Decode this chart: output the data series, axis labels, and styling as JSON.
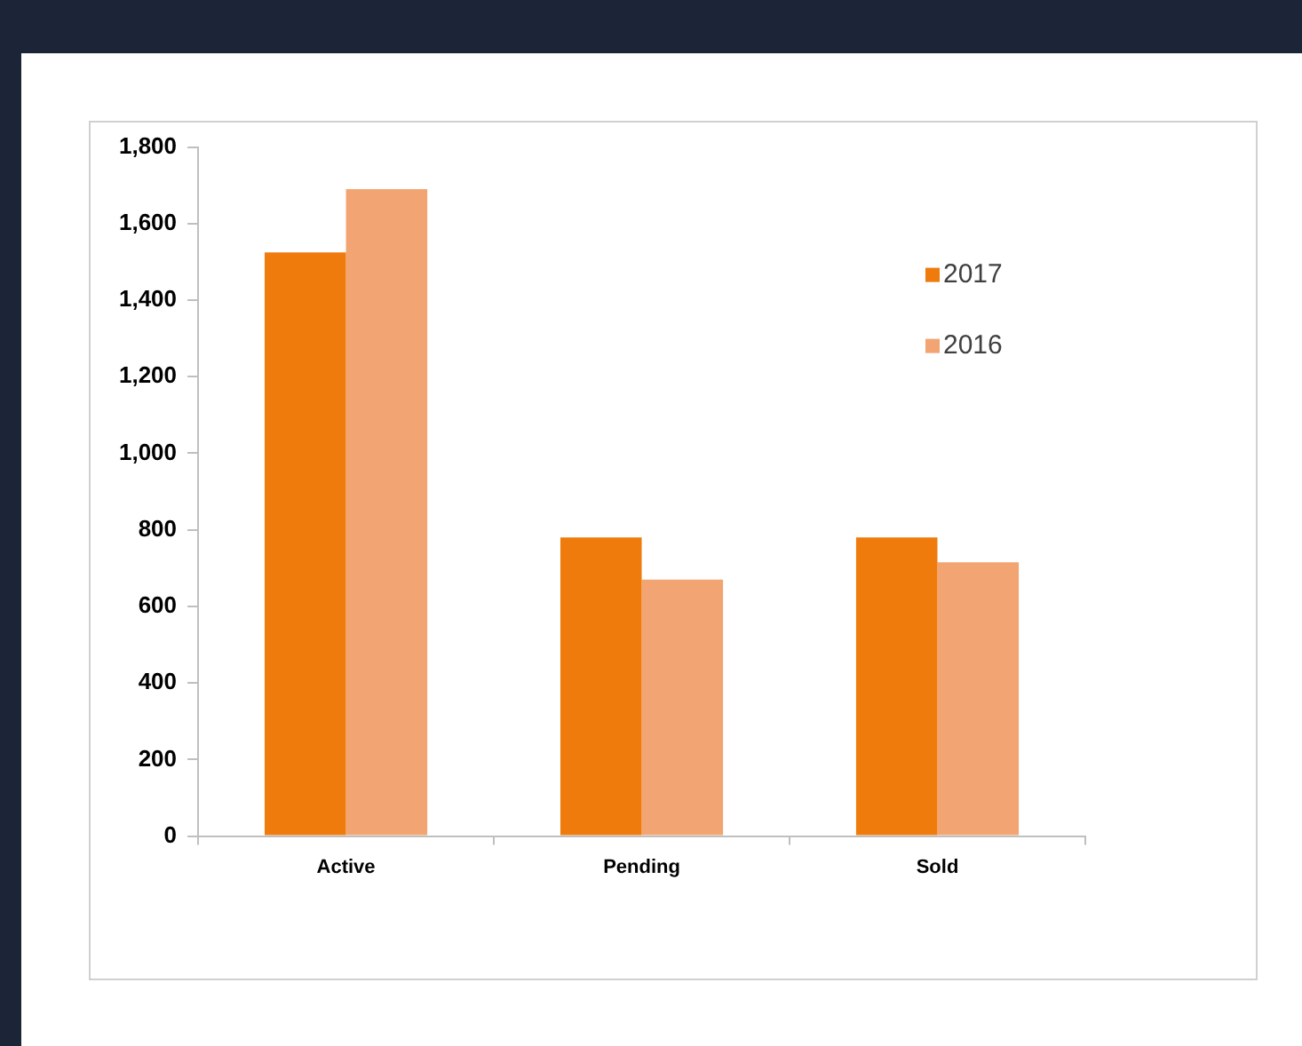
{
  "chart_data": {
    "type": "bar",
    "categories": [
      "Active",
      "Pending",
      "Sold"
    ],
    "series": [
      {
        "name": "2017",
        "color": "#ee7b0c",
        "values": [
          1525,
          780,
          780
        ]
      },
      {
        "name": "2016",
        "color": "#f2a472",
        "values": [
          1690,
          670,
          715
        ]
      }
    ],
    "ylim": [
      0,
      1800
    ],
    "yticks": [
      0,
      200,
      400,
      600,
      800,
      {
        "value": 1000,
        "label": "1,000"
      },
      {
        "value": 1200,
        "label": "1,200"
      },
      {
        "value": 1400,
        "label": "1,400"
      },
      {
        "value": 1600,
        "label": "1,600"
      },
      {
        "value": 1800,
        "label": "1,800"
      }
    ],
    "grid": false,
    "legend": "top right"
  }
}
